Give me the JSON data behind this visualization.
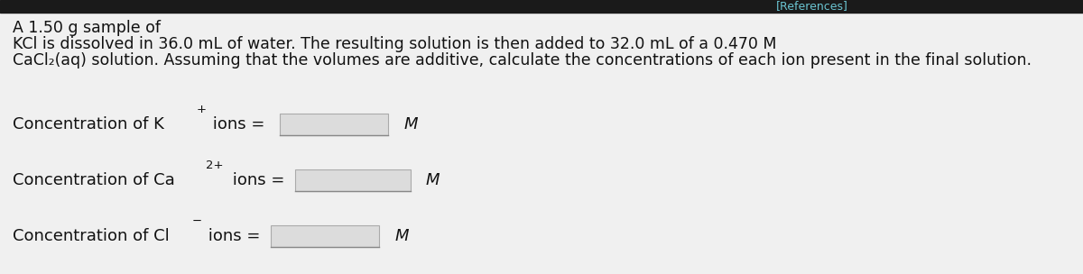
{
  "background_color": "#f0f0f0",
  "top_bar_color": "#1a1a1a",
  "top_bar_text": "[References]",
  "top_bar_text_color": "#6bc5d2",
  "paragraph_line1": "A 1.50 g sample of",
  "paragraph_line2": "KCl is dissolved in 36.0 mL of water. The resulting solution is then added to 32.0 mL of a 0.470 M",
  "paragraph_line3": "CaCl₂(aq) solution. Assuming that the volumes are additive, calculate the concentrations of each ion present in the final solution.",
  "row1_label": "Concentration of K",
  "row1_super": "+",
  "row1_rest": " ions =",
  "row1_unit": "M",
  "row2_label": "Concentration of Ca",
  "row2_super": "2+",
  "row2_rest": " ions =",
  "row2_unit": "M",
  "row3_label": "Concentration of Cl",
  "row3_super": "−",
  "row3_rest": " ions =",
  "row3_unit": "M",
  "text_color": "#111111",
  "box_fill": "#dcdcdc",
  "box_edge": "#aaaaaa",
  "font_size_para": 12.5,
  "font_size_label": 13,
  "font_size_super": 9.5,
  "font_size_unit": 13
}
